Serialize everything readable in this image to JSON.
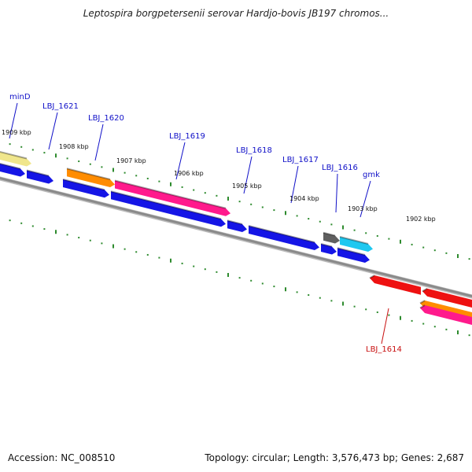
{
  "title": "Leptospira borgpetersenii serovar Hardjo-bovis JB197 chromos...",
  "footer": {
    "accession": "Accession: NC_008510",
    "topology": "Topology: circular; Length: 3,576,473 bp; Genes: 2,687"
  },
  "colors": {
    "backbone": "#8a8a8a",
    "tick": "#2e8b2e",
    "forward_label": "#1010c8",
    "reverse_label": "#c81010",
    "blue": "#1515e6",
    "orange": "#ff8c00",
    "pink": "#ff1a8c",
    "yellow": "#f0e68c",
    "gray": "#606060",
    "cyan": "#1ec8f0",
    "red": "#ee1111"
  },
  "scale_labels": [
    "1909 kbp",
    "1908 kbp",
    "1907 kbp",
    "1906 kbp",
    "1905 kbp",
    "1904 kbp",
    "1903 kbp",
    "1902 kbp"
  ],
  "gene_labels": [
    {
      "name": "minD",
      "strand": "forward"
    },
    {
      "name": "LBJ_1621",
      "strand": "forward"
    },
    {
      "name": "LBJ_1620",
      "strand": "forward"
    },
    {
      "name": "LBJ_1619",
      "strand": "forward"
    },
    {
      "name": "LBJ_1618",
      "strand": "forward"
    },
    {
      "name": "LBJ_1617",
      "strand": "forward"
    },
    {
      "name": "LBJ_1616",
      "strand": "forward"
    },
    {
      "name": "gmk",
      "strand": "forward"
    },
    {
      "name": "LBJ_1614",
      "strand": "reverse"
    }
  ]
}
